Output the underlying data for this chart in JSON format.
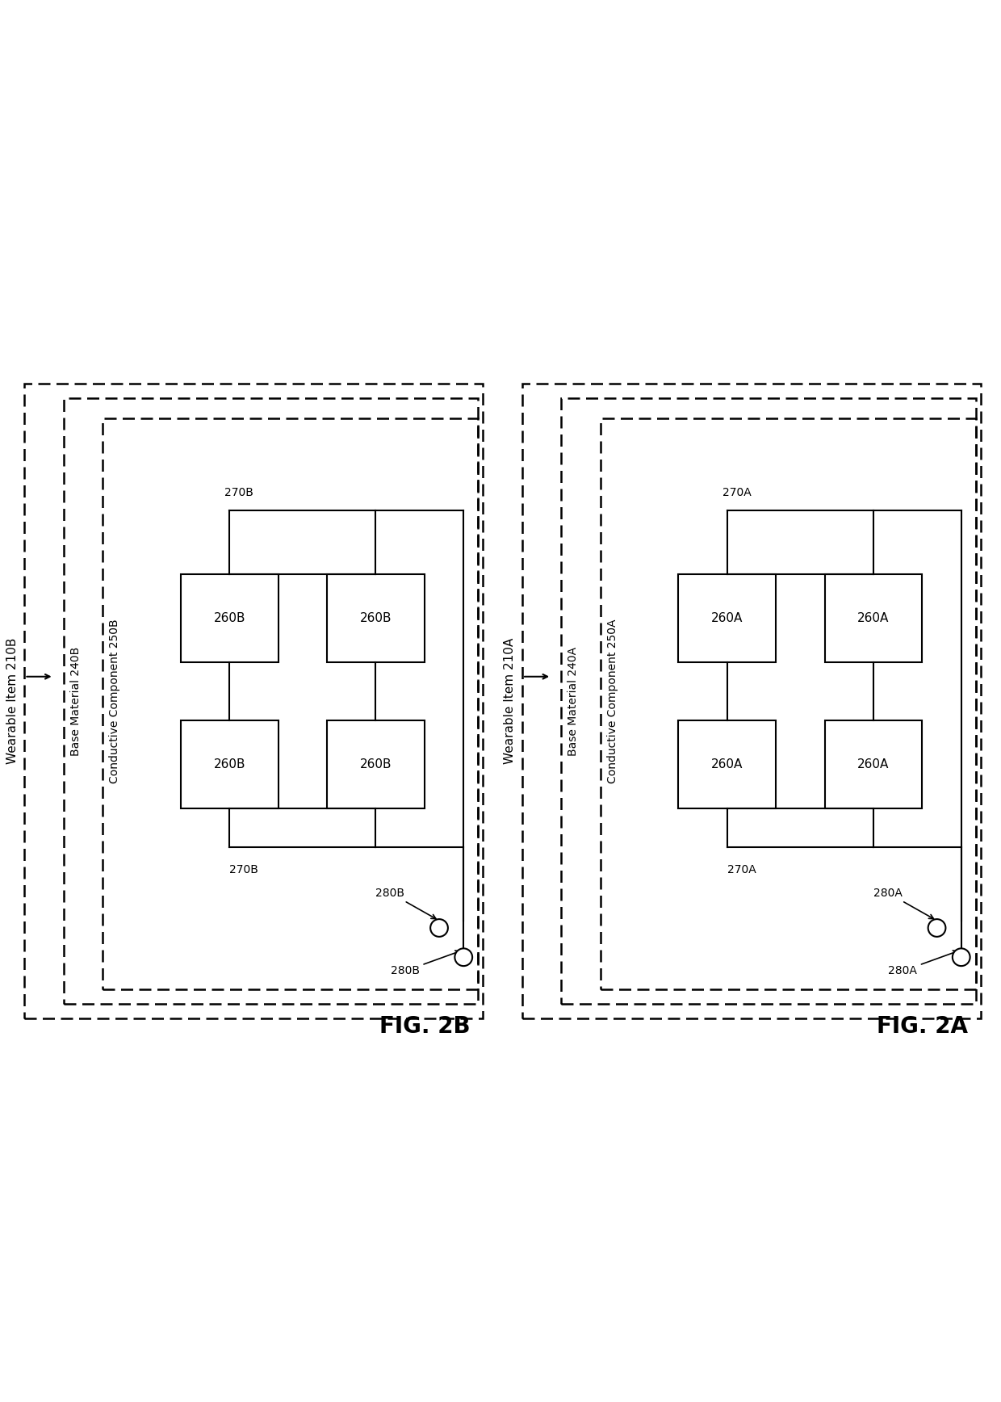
{
  "bg_color": "#ffffff",
  "line_color": "#000000",
  "fig_label_A": "FIG. 2A",
  "fig_label_B": "FIG. 2B",
  "panel_A": {
    "wearable_label": "Wearable Item 210A",
    "base_label": "Base Material 240A",
    "conductive_label": "Conductive Component 250A",
    "boxes": [
      {
        "label": "260A",
        "col": 0,
        "row": 0
      },
      {
        "label": "260A",
        "col": 1,
        "row": 0
      },
      {
        "label": "260A",
        "col": 0,
        "row": 1
      },
      {
        "label": "260A",
        "col": 1,
        "row": 1
      }
    ],
    "bus_label_top": "270A",
    "bus_label_bottom": "270A",
    "connector_labels": [
      "280A",
      "280A"
    ]
  },
  "panel_B": {
    "wearable_label": "Wearable Item 210B",
    "base_label": "Base Material 240B",
    "conductive_label": "Conductive Component 250B",
    "boxes": [
      {
        "label": "260B",
        "col": 0,
        "row": 0
      },
      {
        "label": "260B",
        "col": 1,
        "row": 0
      },
      {
        "label": "260B",
        "col": 0,
        "row": 1
      },
      {
        "label": "260B",
        "col": 1,
        "row": 1
      }
    ],
    "bus_label_top": "270B",
    "bus_label_bottom": "270B",
    "connector_labels": [
      "280B",
      "280B"
    ]
  }
}
